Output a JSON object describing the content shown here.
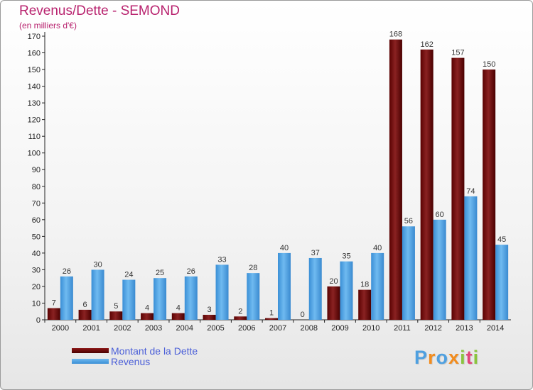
{
  "title": "Revenus/Dette - SEMOND",
  "subtitle": "(en milliers d'€)",
  "logo_text": "Proxiti",
  "colors": {
    "title": "#b8226e",
    "dette": "#6e0a0a",
    "revenus": "#4fa3e8",
    "legend_text": "#4b5fd8"
  },
  "chart_data": {
    "type": "bar",
    "title": "Revenus/Dette - SEMOND",
    "subtitle": "(en milliers d'€)",
    "categories": [
      "2000",
      "2001",
      "2002",
      "2003",
      "2004",
      "2005",
      "2006",
      "2007",
      "2008",
      "2009",
      "2010",
      "2011",
      "2012",
      "2013",
      "2014"
    ],
    "series": [
      {
        "name": "Montant de la Dette",
        "values": [
          7,
          6,
          5,
          4,
          4,
          3,
          2,
          1,
          0,
          20,
          18,
          168,
          162,
          157,
          150
        ]
      },
      {
        "name": "Revenus",
        "values": [
          26,
          30,
          24,
          25,
          26,
          33,
          28,
          40,
          37,
          35,
          40,
          56,
          60,
          74,
          45
        ]
      }
    ],
    "yticks": [
      0,
      10,
      20,
      30,
      40,
      50,
      60,
      70,
      80,
      90,
      100,
      110,
      120,
      130,
      140,
      150,
      160,
      170
    ],
    "ylim": [
      0,
      170
    ],
    "grid": false,
    "legend_position": "bottom-left"
  }
}
